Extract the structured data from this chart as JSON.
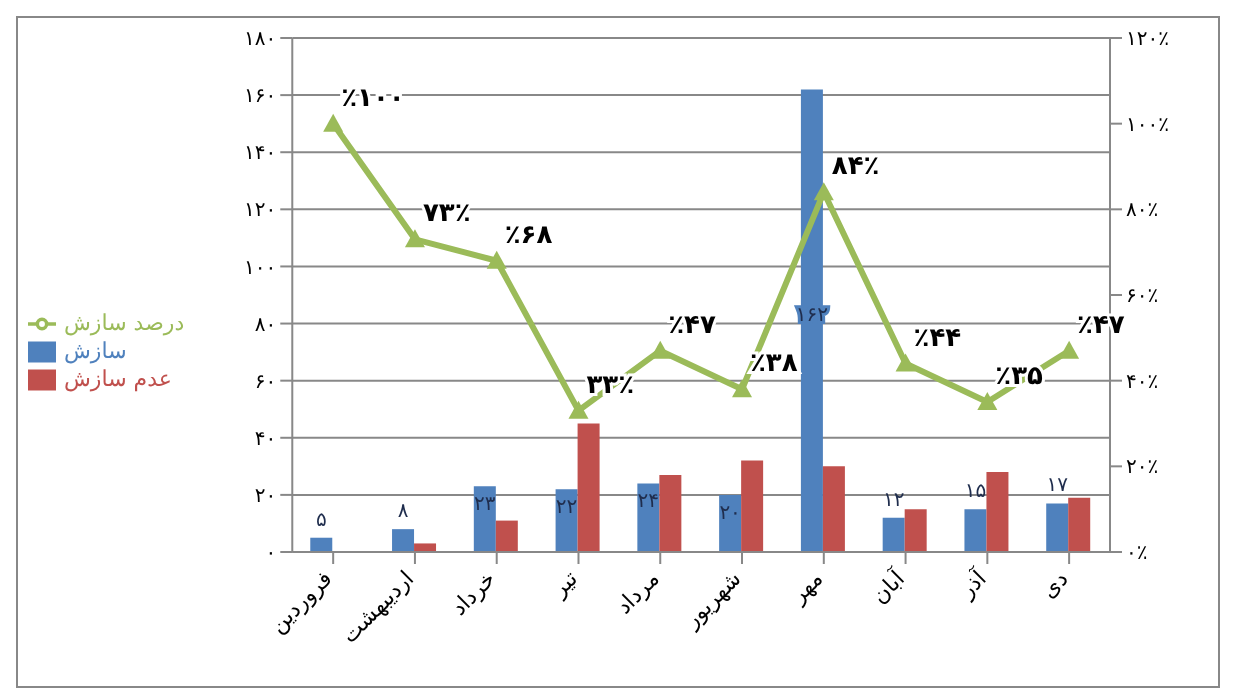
{
  "chart_data": {
    "type": "bar",
    "categories": [
      "فروردین",
      "اردیبهشت",
      "خرداد",
      "تیر",
      "مرداد",
      "شهریور",
      "مهر",
      "آبان",
      "آذر",
      "دی"
    ],
    "series": [
      {
        "name": "سازش",
        "color": "#4f81bd",
        "values": [
          5,
          8,
          23,
          22,
          24,
          20,
          162,
          12,
          15,
          17
        ],
        "value_labels": [
          "۵",
          "۸",
          "۲۳",
          "۲۲",
          "۲۴",
          "۲۰",
          "۱۶۲",
          "۱۲",
          "۱۵",
          "۱۷"
        ]
      },
      {
        "name": "عدم سازش",
        "color": "#c0504d",
        "values": [
          0,
          3,
          11,
          45,
          27,
          32,
          30,
          15,
          28,
          19
        ]
      },
      {
        "name": "درصد سازش",
        "type": "line",
        "axis": "y2",
        "color": "#9bbb59",
        "values": [
          100,
          73,
          68,
          33,
          47,
          38,
          84,
          44,
          35,
          47
        ],
        "value_labels": [
          "٪۱۰۰",
          "۷۳٪",
          "٪۶۸",
          "۳۳٪",
          "٪۴۷",
          "٪۳۸",
          "۸۴٪",
          "٪۴۴",
          "٪۳۵",
          "٪۴۷"
        ]
      }
    ],
    "ylim": [
      0,
      180
    ],
    "yticks": [
      {
        "value": 0,
        "label": "۰"
      },
      {
        "value": 20,
        "label": "۲۰"
      },
      {
        "value": 40,
        "label": "۴۰"
      },
      {
        "value": 60,
        "label": "۶۰"
      },
      {
        "value": 80,
        "label": "۸۰"
      },
      {
        "value": 100,
        "label": "۱۰۰"
      },
      {
        "value": 120,
        "label": "۱۲۰"
      },
      {
        "value": 140,
        "label": "۱۴۰"
      },
      {
        "value": 160,
        "label": "۱۶۰"
      },
      {
        "value": 180,
        "label": "۱۸۰"
      }
    ],
    "y2lim": [
      0,
      120
    ],
    "y2ticks": [
      {
        "value": 0,
        "label": "۰٪"
      },
      {
        "value": 20,
        "label": "۲۰٪"
      },
      {
        "value": 40,
        "label": "۴۰٪"
      },
      {
        "value": 60,
        "label": "۶۰٪"
      },
      {
        "value": 80,
        "label": "۸۰٪"
      },
      {
        "value": 100,
        "label": "۱۰۰٪"
      },
      {
        "value": 120,
        "label": "۱۲۰٪"
      }
    ],
    "grid": "y",
    "legend": "left",
    "marker": "triangle"
  }
}
